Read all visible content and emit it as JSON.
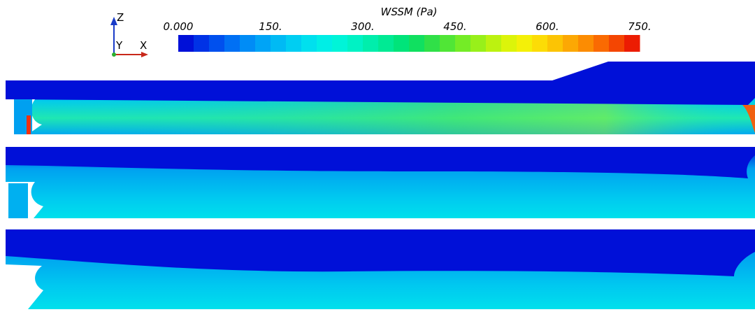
{
  "colorbar": {
    "title": "WSSM (Pa)",
    "range": [
      0,
      750
    ],
    "ticks": [
      {
        "value": 0,
        "label": "0.000"
      },
      {
        "value": 150,
        "label": "150."
      },
      {
        "value": 300,
        "label": "300."
      },
      {
        "value": 450,
        "label": "450."
      },
      {
        "value": 600,
        "label": "600."
      },
      {
        "value": 750,
        "label": "750."
      }
    ],
    "colors": [
      "#0010d8",
      "#0032e6",
      "#0050ee",
      "#0070f4",
      "#008cf6",
      "#00a4f6",
      "#00baf4",
      "#00cef2",
      "#00e0ee",
      "#00eee6",
      "#00f4d8",
      "#00f2c4",
      "#00eeac",
      "#00ea94",
      "#00e47a",
      "#10e060",
      "#30e048",
      "#50e636",
      "#74ec26",
      "#98f01a",
      "#bcf210",
      "#dcf40a",
      "#f4f008",
      "#fcdc06",
      "#fcc404",
      "#fca804",
      "#fc8c02",
      "#fa6a02",
      "#f44602",
      "#ec1c02"
    ]
  },
  "triad": {
    "z": "Z",
    "y": "Y",
    "x": "X"
  }
}
